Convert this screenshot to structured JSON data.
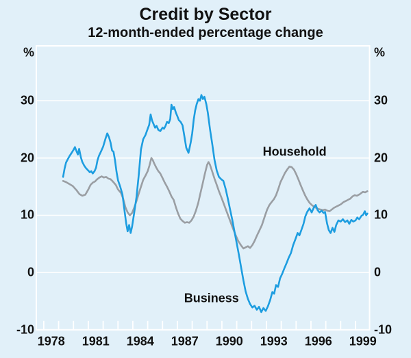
{
  "header": {
    "title": "Credit by Sector",
    "subtitle": "12-month-ended percentage change"
  },
  "colors": {
    "background": "#E1F0F9",
    "gridlines": "#FFFFFF",
    "text": "#111111",
    "business_line": "#1D9DE0",
    "household_line": "#9A9EA3"
  },
  "chart_data": {
    "type": "line",
    "title": "Credit by Sector",
    "subtitle": "12-month-ended percentage change",
    "unit": "%",
    "grid": "horizontal white gridlines on light blue background",
    "legend": "in-plot text labels next to each line",
    "x_axis": {
      "min": 1977.5,
      "max": 2000,
      "first_tick": 1978,
      "last_tick": 1999,
      "label_years": [
        1978,
        1981,
        1984,
        1987,
        1990,
        1993,
        1996,
        1999
      ]
    },
    "y_axis": {
      "min": -10,
      "max": 40,
      "tick_labels": [
        30,
        20,
        10,
        0,
        -10
      ],
      "gridline_values": [
        30,
        20,
        10,
        0
      ],
      "unit_shown_both_sides": true
    },
    "series": [
      {
        "name": "Household",
        "color": "#9A9EA3",
        "label_year": 1994.9,
        "label_value": 21.1,
        "points": [
          [
            1979.3,
            16.0
          ],
          [
            1979.5,
            15.8
          ],
          [
            1979.7,
            15.5
          ],
          [
            1979.95,
            15.1
          ],
          [
            1980.2,
            14.4
          ],
          [
            1980.4,
            13.7
          ],
          [
            1980.6,
            13.4
          ],
          [
            1980.8,
            13.6
          ],
          [
            1981.0,
            14.5
          ],
          [
            1981.15,
            15.3
          ],
          [
            1981.3,
            15.7
          ],
          [
            1981.45,
            15.9
          ],
          [
            1981.6,
            16.3
          ],
          [
            1981.75,
            16.6
          ],
          [
            1981.9,
            16.8
          ],
          [
            1982.05,
            16.6
          ],
          [
            1982.2,
            16.7
          ],
          [
            1982.35,
            16.4
          ],
          [
            1982.5,
            16.3
          ],
          [
            1982.65,
            15.9
          ],
          [
            1982.85,
            15.3
          ],
          [
            1983.0,
            14.5
          ],
          [
            1983.2,
            13.9
          ],
          [
            1983.35,
            12.9
          ],
          [
            1983.5,
            11.4
          ],
          [
            1983.65,
            10.5
          ],
          [
            1983.8,
            10.0
          ],
          [
            1983.95,
            10.4
          ],
          [
            1984.1,
            11.4
          ],
          [
            1984.25,
            12.5
          ],
          [
            1984.4,
            13.8
          ],
          [
            1984.55,
            15.0
          ],
          [
            1984.7,
            16.2
          ],
          [
            1984.85,
            16.9
          ],
          [
            1985.0,
            17.7
          ],
          [
            1985.12,
            18.7
          ],
          [
            1985.25,
            20.0
          ],
          [
            1985.35,
            19.6
          ],
          [
            1985.45,
            19.0
          ],
          [
            1985.58,
            18.3
          ],
          [
            1985.72,
            17.7
          ],
          [
            1985.85,
            17.3
          ],
          [
            1986.0,
            16.5
          ],
          [
            1986.15,
            15.7
          ],
          [
            1986.3,
            15.0
          ],
          [
            1986.45,
            14.2
          ],
          [
            1986.6,
            13.3
          ],
          [
            1986.75,
            12.7
          ],
          [
            1986.9,
            11.4
          ],
          [
            1987.05,
            10.3
          ],
          [
            1987.2,
            9.4
          ],
          [
            1987.35,
            9.0
          ],
          [
            1987.5,
            8.7
          ],
          [
            1987.65,
            8.8
          ],
          [
            1987.8,
            8.7
          ],
          [
            1987.95,
            9.1
          ],
          [
            1988.1,
            9.8
          ],
          [
            1988.25,
            10.8
          ],
          [
            1988.4,
            12.1
          ],
          [
            1988.55,
            13.8
          ],
          [
            1988.7,
            15.5
          ],
          [
            1988.85,
            17.2
          ],
          [
            1989.0,
            18.8
          ],
          [
            1989.1,
            19.3
          ],
          [
            1989.2,
            18.8
          ],
          [
            1989.35,
            17.6
          ],
          [
            1989.5,
            16.4
          ],
          [
            1989.65,
            15.3
          ],
          [
            1989.8,
            14.2
          ],
          [
            1989.95,
            13.2
          ],
          [
            1990.1,
            12.2
          ],
          [
            1990.3,
            10.8
          ],
          [
            1990.5,
            9.4
          ],
          [
            1990.7,
            8.0
          ],
          [
            1990.9,
            6.7
          ],
          [
            1991.1,
            5.5
          ],
          [
            1991.3,
            4.7
          ],
          [
            1991.45,
            4.2
          ],
          [
            1991.6,
            4.4
          ],
          [
            1991.75,
            4.6
          ],
          [
            1991.9,
            4.3
          ],
          [
            1992.05,
            4.8
          ],
          [
            1992.2,
            5.5
          ],
          [
            1992.35,
            6.4
          ],
          [
            1992.5,
            7.2
          ],
          [
            1992.7,
            8.3
          ],
          [
            1992.9,
            9.9
          ],
          [
            1993.05,
            11.0
          ],
          [
            1993.2,
            11.8
          ],
          [
            1993.35,
            12.3
          ],
          [
            1993.5,
            12.8
          ],
          [
            1993.65,
            13.5
          ],
          [
            1993.8,
            14.6
          ],
          [
            1993.95,
            15.8
          ],
          [
            1994.1,
            16.6
          ],
          [
            1994.25,
            17.4
          ],
          [
            1994.4,
            18.0
          ],
          [
            1994.55,
            18.5
          ],
          [
            1994.7,
            18.4
          ],
          [
            1994.85,
            18.0
          ],
          [
            1995.0,
            17.2
          ],
          [
            1995.15,
            16.3
          ],
          [
            1995.3,
            15.3
          ],
          [
            1995.45,
            14.4
          ],
          [
            1995.6,
            13.5
          ],
          [
            1995.75,
            12.8
          ],
          [
            1995.9,
            12.2
          ],
          [
            1996.05,
            11.8
          ],
          [
            1996.2,
            11.5
          ],
          [
            1996.35,
            11.3
          ],
          [
            1996.5,
            11.1
          ],
          [
            1996.65,
            11.0
          ],
          [
            1996.8,
            10.9
          ],
          [
            1996.95,
            11.0
          ],
          [
            1997.1,
            10.8
          ],
          [
            1997.25,
            10.7
          ],
          [
            1997.4,
            11.0
          ],
          [
            1997.55,
            11.3
          ],
          [
            1997.7,
            11.5
          ],
          [
            1997.85,
            11.7
          ],
          [
            1998.0,
            11.9
          ],
          [
            1998.2,
            12.3
          ],
          [
            1998.35,
            12.5
          ],
          [
            1998.5,
            12.7
          ],
          [
            1998.65,
            12.9
          ],
          [
            1998.8,
            13.3
          ],
          [
            1998.95,
            13.5
          ],
          [
            1999.1,
            13.4
          ],
          [
            1999.3,
            13.7
          ],
          [
            1999.5,
            14.1
          ],
          [
            1999.65,
            14.0
          ],
          [
            1999.8,
            14.2
          ]
        ]
      },
      {
        "name": "Business",
        "color": "#1D9DE0",
        "label_year": 1989.3,
        "label_value": -4.5,
        "points": [
          [
            1979.3,
            16.7
          ],
          [
            1979.4,
            18.1
          ],
          [
            1979.5,
            19.2
          ],
          [
            1979.62,
            19.8
          ],
          [
            1979.75,
            20.4
          ],
          [
            1979.9,
            21.0
          ],
          [
            1980.0,
            21.4
          ],
          [
            1980.1,
            21.9
          ],
          [
            1980.2,
            21.2
          ],
          [
            1980.3,
            20.6
          ],
          [
            1980.38,
            21.6
          ],
          [
            1980.5,
            20.1
          ],
          [
            1980.6,
            19.3
          ],
          [
            1980.72,
            18.7
          ],
          [
            1980.85,
            18.2
          ],
          [
            1981.0,
            17.8
          ],
          [
            1981.1,
            17.5
          ],
          [
            1981.2,
            17.7
          ],
          [
            1981.3,
            17.3
          ],
          [
            1981.42,
            17.7
          ],
          [
            1981.52,
            18.3
          ],
          [
            1981.62,
            19.6
          ],
          [
            1981.72,
            20.4
          ],
          [
            1981.85,
            21.1
          ],
          [
            1982.0,
            22.0
          ],
          [
            1982.15,
            23.3
          ],
          [
            1982.28,
            24.3
          ],
          [
            1982.4,
            23.6
          ],
          [
            1982.5,
            22.7
          ],
          [
            1982.6,
            21.3
          ],
          [
            1982.7,
            21.1
          ],
          [
            1982.8,
            19.6
          ],
          [
            1982.9,
            17.6
          ],
          [
            1983.0,
            16.1
          ],
          [
            1983.15,
            15.0
          ],
          [
            1983.3,
            13.6
          ],
          [
            1983.45,
            10.6
          ],
          [
            1983.55,
            8.6
          ],
          [
            1983.65,
            7.2
          ],
          [
            1983.75,
            8.3
          ],
          [
            1983.85,
            6.9
          ],
          [
            1983.95,
            8.0
          ],
          [
            1984.1,
            10.6
          ],
          [
            1984.25,
            13.2
          ],
          [
            1984.4,
            17.1
          ],
          [
            1984.55,
            21.5
          ],
          [
            1984.7,
            23.3
          ],
          [
            1984.85,
            24.0
          ],
          [
            1985.0,
            25.1
          ],
          [
            1985.1,
            25.8
          ],
          [
            1985.2,
            27.6
          ],
          [
            1985.3,
            26.5
          ],
          [
            1985.4,
            25.9
          ],
          [
            1985.5,
            25.3
          ],
          [
            1985.6,
            25.6
          ],
          [
            1985.72,
            24.9
          ],
          [
            1985.85,
            24.7
          ],
          [
            1986.0,
            25.3
          ],
          [
            1986.1,
            25.1
          ],
          [
            1986.2,
            25.6
          ],
          [
            1986.3,
            26.3
          ],
          [
            1986.42,
            26.1
          ],
          [
            1986.52,
            26.8
          ],
          [
            1986.6,
            29.3
          ],
          [
            1986.7,
            28.5
          ],
          [
            1986.78,
            28.9
          ],
          [
            1986.9,
            27.9
          ],
          [
            1987.0,
            27.3
          ],
          [
            1987.1,
            26.6
          ],
          [
            1987.22,
            26.3
          ],
          [
            1987.35,
            25.7
          ],
          [
            1987.48,
            23.7
          ],
          [
            1987.6,
            21.8
          ],
          [
            1987.75,
            20.9
          ],
          [
            1987.9,
            22.7
          ],
          [
            1988.0,
            24.3
          ],
          [
            1988.1,
            26.7
          ],
          [
            1988.2,
            28.3
          ],
          [
            1988.3,
            29.4
          ],
          [
            1988.42,
            30.3
          ],
          [
            1988.52,
            30.0
          ],
          [
            1988.62,
            31.0
          ],
          [
            1988.72,
            30.3
          ],
          [
            1988.82,
            30.7
          ],
          [
            1988.95,
            29.4
          ],
          [
            1989.05,
            27.9
          ],
          [
            1989.2,
            25.0
          ],
          [
            1989.35,
            22.4
          ],
          [
            1989.5,
            19.7
          ],
          [
            1989.65,
            17.8
          ],
          [
            1989.8,
            16.7
          ],
          [
            1989.95,
            16.3
          ],
          [
            1990.1,
            16.0
          ],
          [
            1990.25,
            14.6
          ],
          [
            1990.4,
            12.9
          ],
          [
            1990.55,
            11.0
          ],
          [
            1990.7,
            9.2
          ],
          [
            1990.85,
            7.1
          ],
          [
            1991.0,
            5.1
          ],
          [
            1991.15,
            3.0
          ],
          [
            1991.3,
            0.8
          ],
          [
            1991.45,
            -1.4
          ],
          [
            1991.6,
            -3.3
          ],
          [
            1991.75,
            -4.6
          ],
          [
            1991.9,
            -5.5
          ],
          [
            1992.05,
            -6.1
          ],
          [
            1992.2,
            -5.8
          ],
          [
            1992.35,
            -6.5
          ],
          [
            1992.5,
            -6.0
          ],
          [
            1992.65,
            -6.9
          ],
          [
            1992.8,
            -6.2
          ],
          [
            1992.95,
            -6.7
          ],
          [
            1993.1,
            -5.9
          ],
          [
            1993.25,
            -4.8
          ],
          [
            1993.4,
            -3.4
          ],
          [
            1993.52,
            -3.7
          ],
          [
            1993.65,
            -2.2
          ],
          [
            1993.78,
            -2.5
          ],
          [
            1993.92,
            -1.0
          ],
          [
            1994.05,
            -0.3
          ],
          [
            1994.2,
            0.7
          ],
          [
            1994.35,
            1.6
          ],
          [
            1994.5,
            2.6
          ],
          [
            1994.65,
            3.4
          ],
          [
            1994.8,
            4.8
          ],
          [
            1994.95,
            5.8
          ],
          [
            1995.1,
            6.9
          ],
          [
            1995.22,
            6.5
          ],
          [
            1995.35,
            7.4
          ],
          [
            1995.5,
            8.5
          ],
          [
            1995.62,
            9.8
          ],
          [
            1995.75,
            10.6
          ],
          [
            1995.9,
            11.2
          ],
          [
            1996.05,
            10.5
          ],
          [
            1996.2,
            11.4
          ],
          [
            1996.32,
            11.8
          ],
          [
            1996.45,
            10.9
          ],
          [
            1996.58,
            10.5
          ],
          [
            1996.72,
            10.8
          ],
          [
            1996.85,
            10.4
          ],
          [
            1996.95,
            10.6
          ],
          [
            1997.08,
            8.6
          ],
          [
            1997.2,
            7.4
          ],
          [
            1997.32,
            6.9
          ],
          [
            1997.45,
            7.8
          ],
          [
            1997.58,
            7.1
          ],
          [
            1997.7,
            8.3
          ],
          [
            1997.85,
            9.1
          ],
          [
            1998.0,
            8.9
          ],
          [
            1998.15,
            9.3
          ],
          [
            1998.3,
            8.8
          ],
          [
            1998.45,
            9.1
          ],
          [
            1998.58,
            8.5
          ],
          [
            1998.72,
            9.2
          ],
          [
            1998.85,
            8.9
          ],
          [
            1999.0,
            9.1
          ],
          [
            1999.12,
            9.6
          ],
          [
            1999.25,
            9.3
          ],
          [
            1999.4,
            9.9
          ],
          [
            1999.52,
            10.1
          ],
          [
            1999.63,
            10.7
          ],
          [
            1999.72,
            10.0
          ],
          [
            1999.8,
            10.3
          ]
        ]
      }
    ]
  }
}
